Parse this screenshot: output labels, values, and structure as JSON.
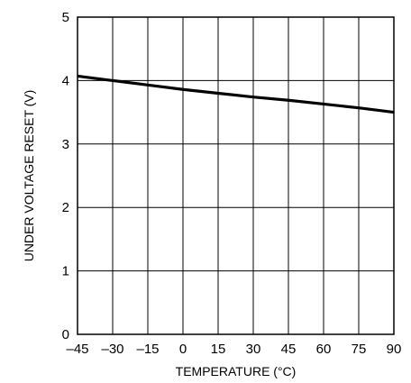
{
  "chart_data": {
    "type": "line",
    "title": "",
    "xlabel": "TEMPERATURE (°C)",
    "ylabel": "UNDER VOLTAGE RESET (V)",
    "xlim": [
      -45,
      90
    ],
    "ylim": [
      0,
      5
    ],
    "x_ticks": [
      -45,
      -30,
      -15,
      0,
      15,
      30,
      45,
      60,
      75,
      90
    ],
    "x_tick_labels": [
      "–45",
      "–30",
      "–15",
      "0",
      "15",
      "30",
      "45",
      "60",
      "75",
      "90"
    ],
    "y_ticks": [
      0,
      1,
      2,
      3,
      4,
      5
    ],
    "y_tick_labels": [
      "0",
      "1",
      "2",
      "3",
      "4",
      "5"
    ],
    "grid": true,
    "series": [
      {
        "x": [
          -45,
          -30,
          -15,
          0,
          15,
          30,
          45,
          60,
          75,
          90
        ],
        "y": [
          4.07,
          4.0,
          3.93,
          3.86,
          3.8,
          3.74,
          3.69,
          3.63,
          3.57,
          3.5
        ]
      }
    ],
    "colors": {
      "line": "#000000",
      "grid": "#000000"
    }
  }
}
